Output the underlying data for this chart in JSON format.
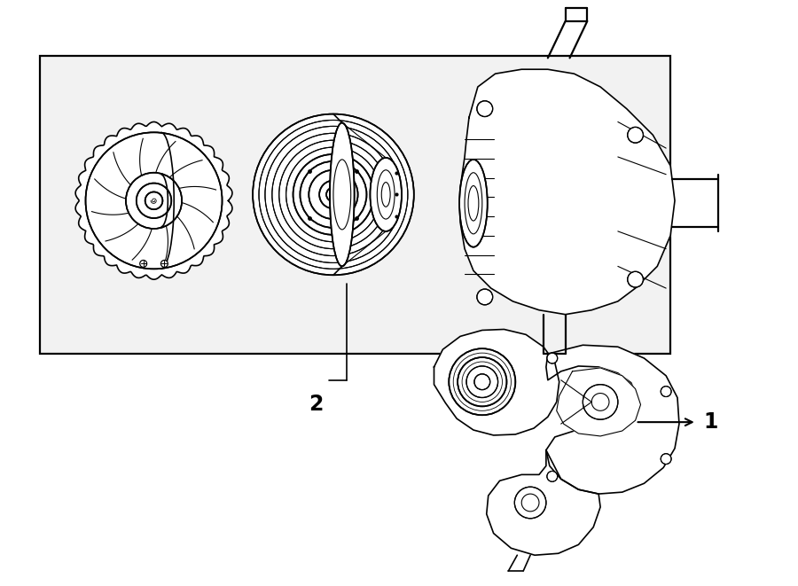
{
  "background_color": "#ffffff",
  "box_bg_color": "#f0f0f0",
  "line_color": "#000000",
  "label1": "1",
  "label2": "2",
  "figsize": [
    9.0,
    6.61
  ],
  "dpi": 100
}
